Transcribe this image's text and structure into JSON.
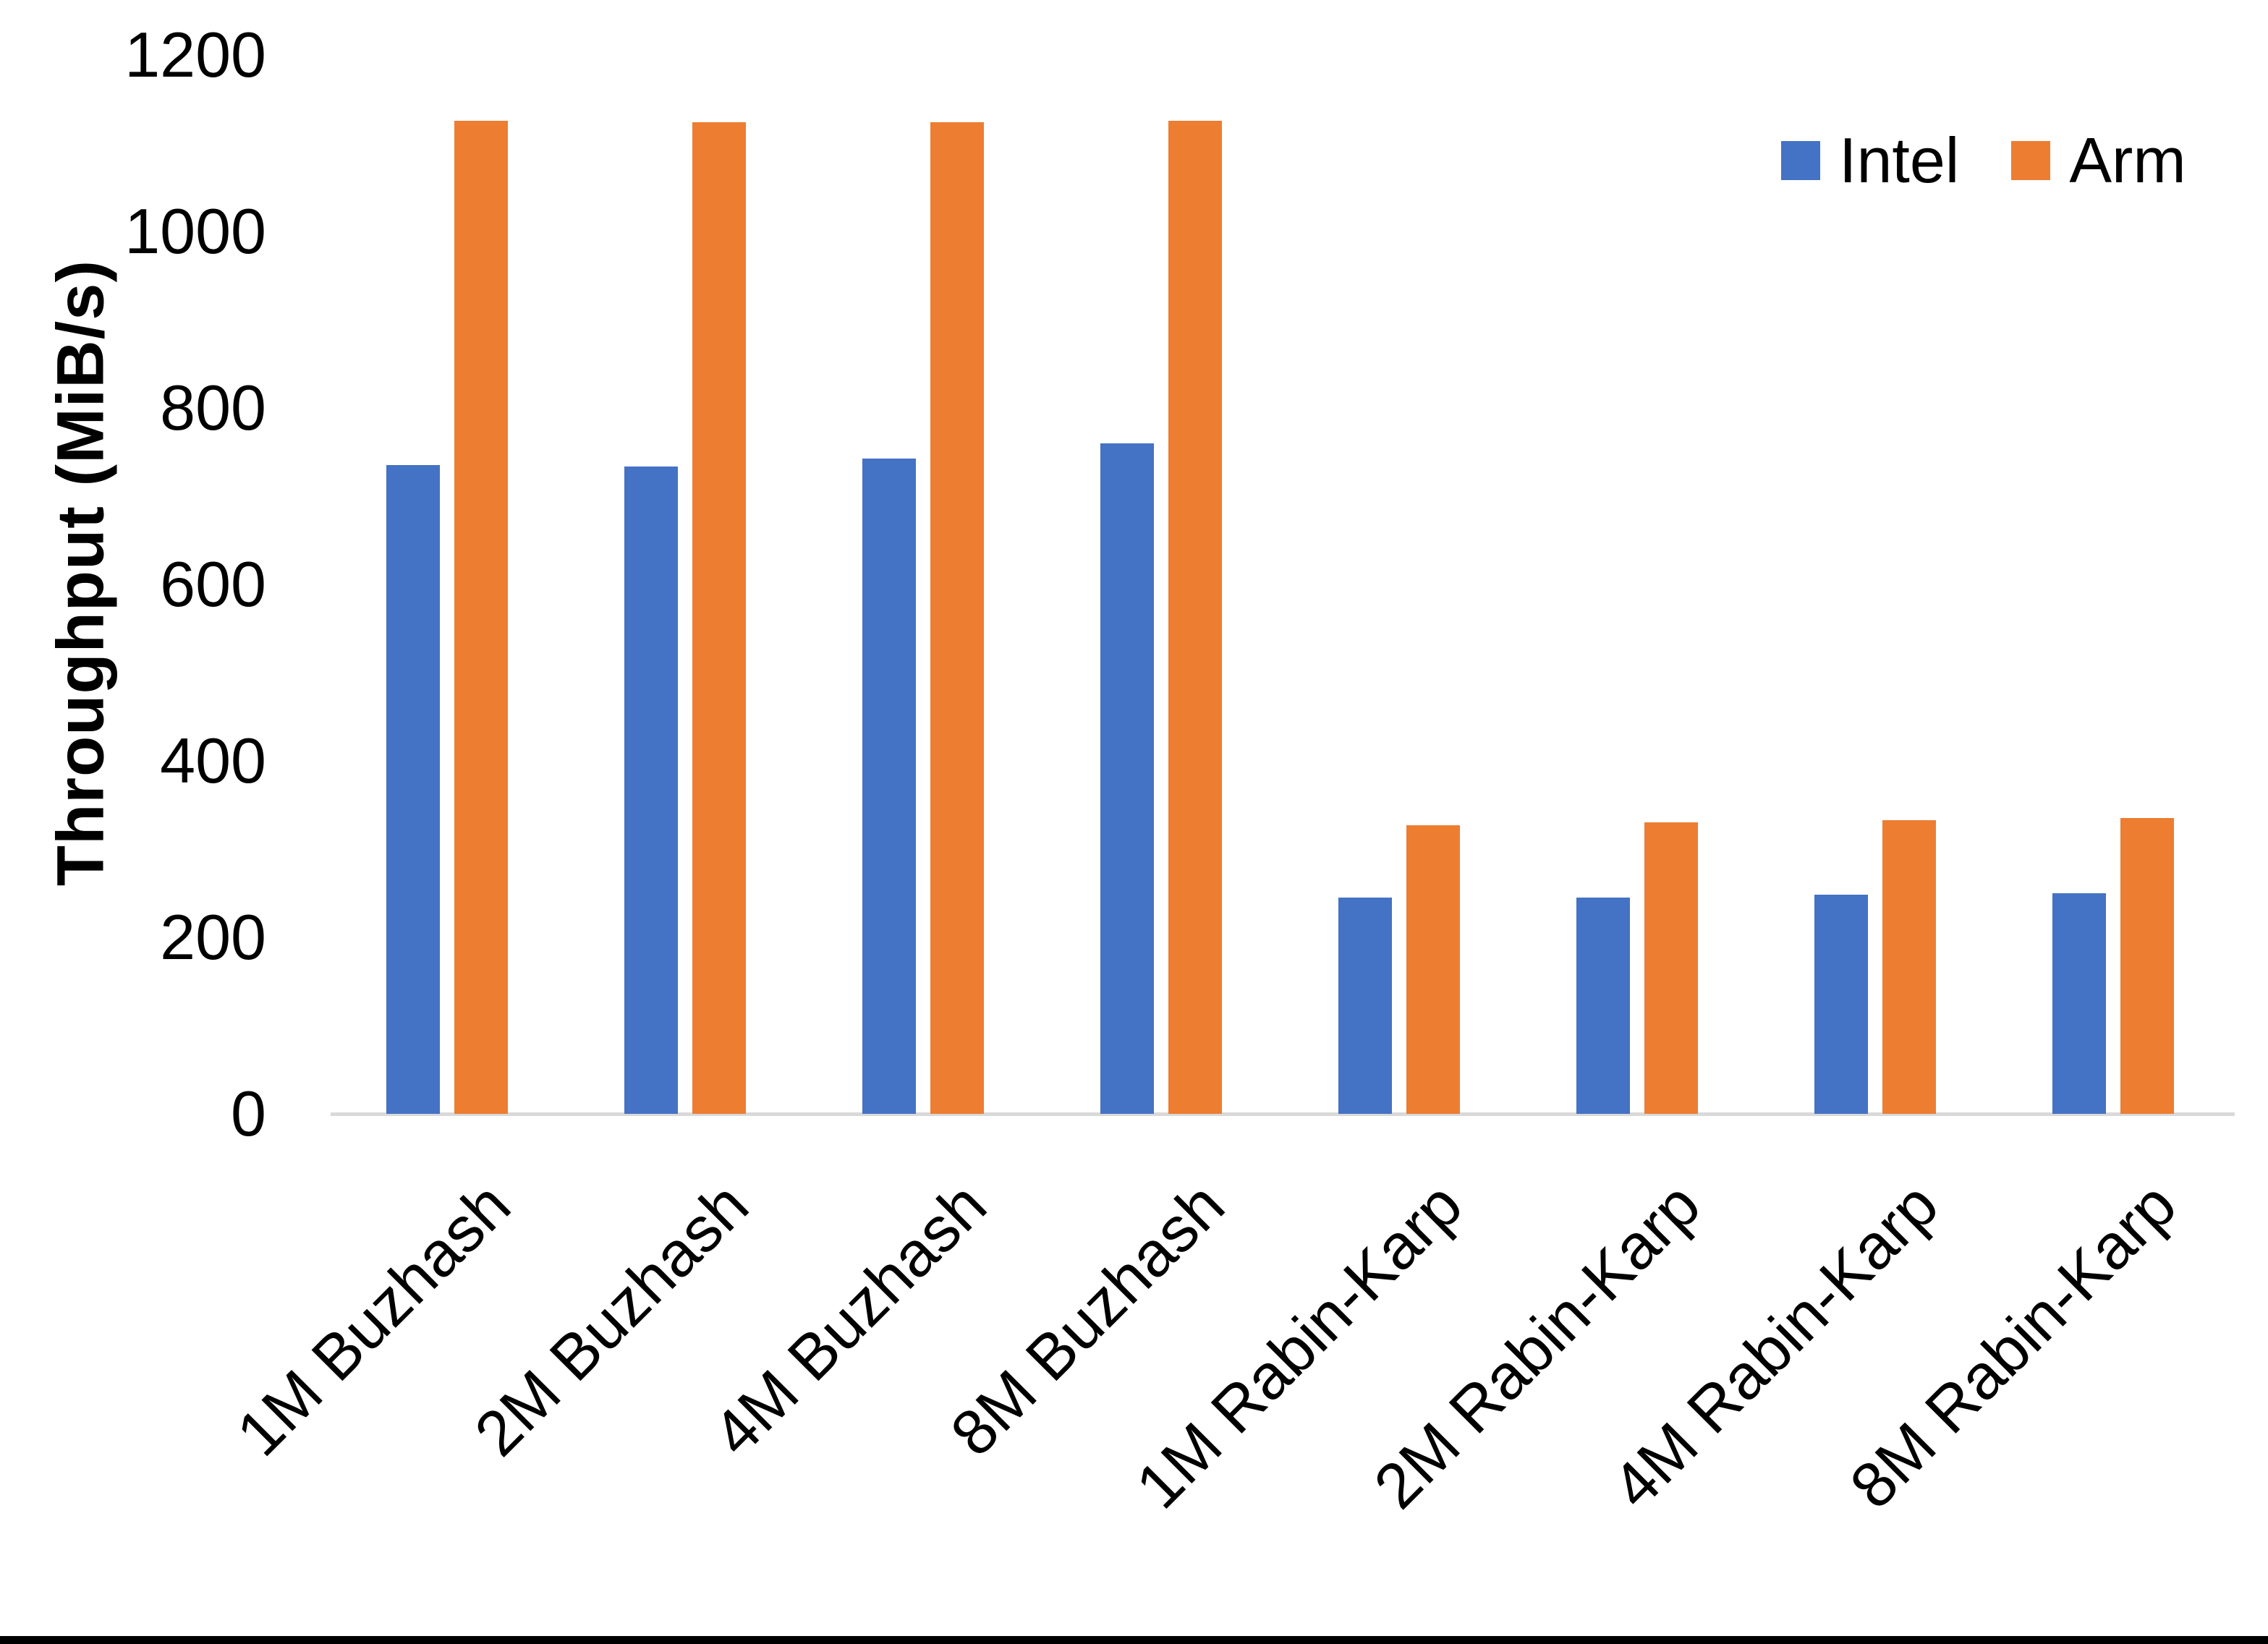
{
  "chart_data": {
    "type": "bar",
    "title": "",
    "categories": [
      "1M Buzhash",
      "2M Buzhash",
      "4M Buzhash",
      "8M Buzhash",
      "1M Rabin-Karp",
      "2M Rabin-Karp",
      "4M Rabin-Karp",
      "8M Rabin-Karp"
    ],
    "series": [
      {
        "name": "Intel",
        "color": "#4472C4",
        "values": [
          735,
          734,
          743,
          760,
          245,
          245,
          248,
          250
        ]
      },
      {
        "name": "Arm",
        "color": "#ED7D31",
        "values": [
          1125,
          1124,
          1124,
          1125,
          327,
          330,
          333,
          335
        ]
      }
    ],
    "xlabel": "",
    "ylabel": "Throughput (MiB/s)",
    "ylim": [
      0,
      1200
    ],
    "yticks": [
      0,
      200,
      400,
      600,
      800,
      1000,
      1200
    ],
    "grid": false,
    "legend_position": "top-right",
    "axis_line_color": "#D9D9D9",
    "text_color": "#000000",
    "background_color": "#FFFFFF"
  }
}
